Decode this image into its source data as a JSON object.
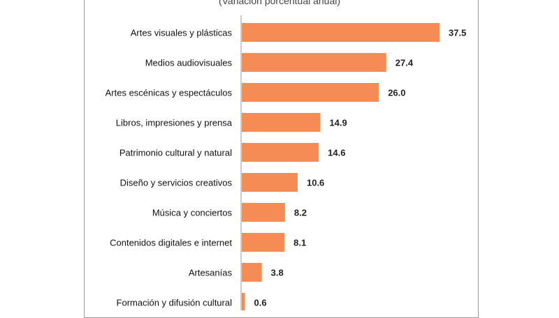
{
  "chart_data": {
    "type": "bar",
    "orientation": "horizontal",
    "subtitle": "(Variación porcentual anual)",
    "categories": [
      "Artes visuales y plásticas",
      "Medios audiovisuales",
      "Artes escénicas y espectáculos",
      "Libros, impresiones y prensa",
      "Patrimonio cultural y natural",
      "Diseño y servicios creativos",
      "Música y conciertos",
      "Contenidos digitales e internet",
      "Artesanías",
      "Formación y difusión cultural"
    ],
    "values": [
      37.5,
      27.4,
      26.0,
      14.9,
      14.6,
      10.6,
      8.2,
      8.1,
      3.8,
      0.6
    ],
    "value_labels": [
      "37.5",
      "27.4",
      "26.0",
      "14.9",
      "14.6",
      "10.6",
      "8.2",
      "8.1",
      "3.8",
      "0.6"
    ],
    "bar_color": "#f58b55",
    "axis_color": "#9a9a9a",
    "xlim": [
      0,
      37.5
    ],
    "grid": false
  }
}
